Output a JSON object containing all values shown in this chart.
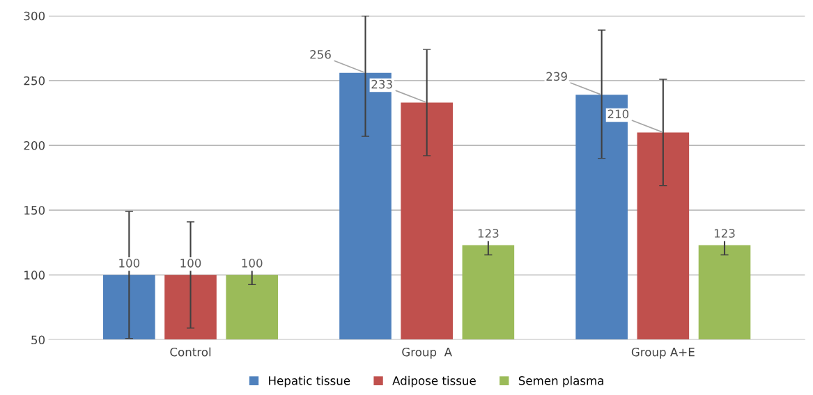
{
  "chart_data": {
    "type": "bar",
    "categories": [
      "Control",
      "Group  A",
      "Group A+E"
    ],
    "series": [
      {
        "name": "Hepatic tissue",
        "color": "#4f81bd",
        "values": [
          100,
          256,
          239
        ],
        "errors": [
          49,
          [
            207,
            300
          ],
          [
            190,
            289
          ]
        ]
      },
      {
        "name": "Adipose tissue",
        "color": "#c0504d",
        "values": [
          100,
          233,
          210
        ],
        "errors": [
          41,
          41,
          41
        ]
      },
      {
        "name": "Semen plasma",
        "color": "#9bbb59",
        "values": [
          100,
          123,
          123
        ],
        "errors": [
          7.5,
          7.5,
          7.5
        ]
      }
    ],
    "ylim": [
      50,
      300
    ],
    "yticks": [
      50,
      100,
      150,
      200,
      250,
      300
    ],
    "grid": "y",
    "legend": "bottom",
    "data_labels": true
  }
}
